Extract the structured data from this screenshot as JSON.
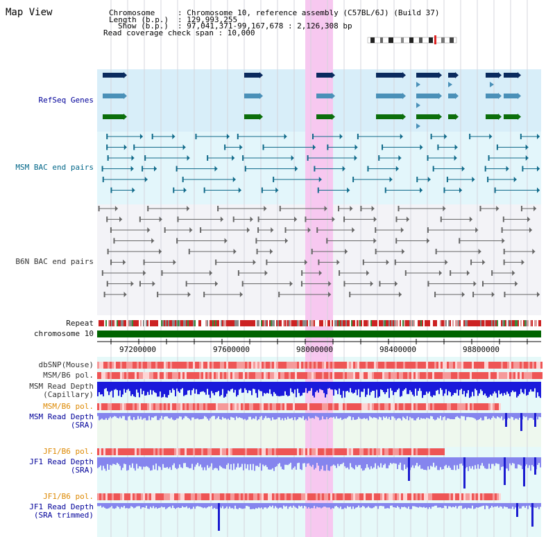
{
  "title": "Map View",
  "info": {
    "chromosome_key": "Chromosome",
    "chromosome_val": ": Chromosome 10, reference assembly (C57BL/6J) (Build 37)",
    "length_key": "Length (b.p.)",
    "length_val": ": 129,993,255",
    "show_key": "Show (b.p.)",
    "show_val": ": 97,041,371-99,167,678 : 2,126,308 bp",
    "coverage": "Read coverage check span : 10,000"
  },
  "tracks": {
    "refseq": "RefSeq Genes",
    "msm_bac": "MSM BAC end pairs",
    "b6n_bac": "B6N BAC end pairs",
    "repeat": "Repeat",
    "chromosome": "chromosome 10",
    "dbsnp": "dbSNP(Mouse)",
    "msm_b6_pol_1": "MSM/B6 pol.",
    "msm_depth_cap_1": "MSM Read Depth",
    "msm_depth_cap_2": "(Capillary)",
    "msm_b6_pol_2": "MSM/B6 pol.",
    "msm_depth_sra_1": "MSM Read Depth",
    "msm_depth_sra_2": "(SRA)",
    "jf1_b6_pol_1": "JF1/B6 pol.",
    "jf1_depth_1": "JF1 Read Depth",
    "jf1_depth_2": "(SRA)",
    "jf1_b6_pol_2": "JF1/B6 pol.",
    "jf1_trim_1": "JF1 Read Depth",
    "jf1_trim_2": "(SRA trimmed)"
  },
  "axis": {
    "ticks": [
      "97200000",
      "97600000",
      "98000000",
      "98400000",
      "98800000"
    ]
  },
  "colors": {
    "highlight": "#f7c8f0",
    "refseq_bg": "#d8eef9",
    "msm_bg": "#e3f6fb",
    "b6n_bg": "#f3f3f7",
    "depth_bg": "#e6f9f9",
    "sra_bg": "#eef8ee",
    "refseq_navy": "#0a2a5e",
    "refseq_steel": "#4a90b8",
    "refseq_green": "#0b6e0b",
    "msm_line": "#106a8a",
    "b6n_line": "#666666",
    "chrom": "#006400",
    "snp": "#ee6666",
    "depth_capillary": "#1a1adb",
    "depth_sra": "#8585ee"
  }
}
